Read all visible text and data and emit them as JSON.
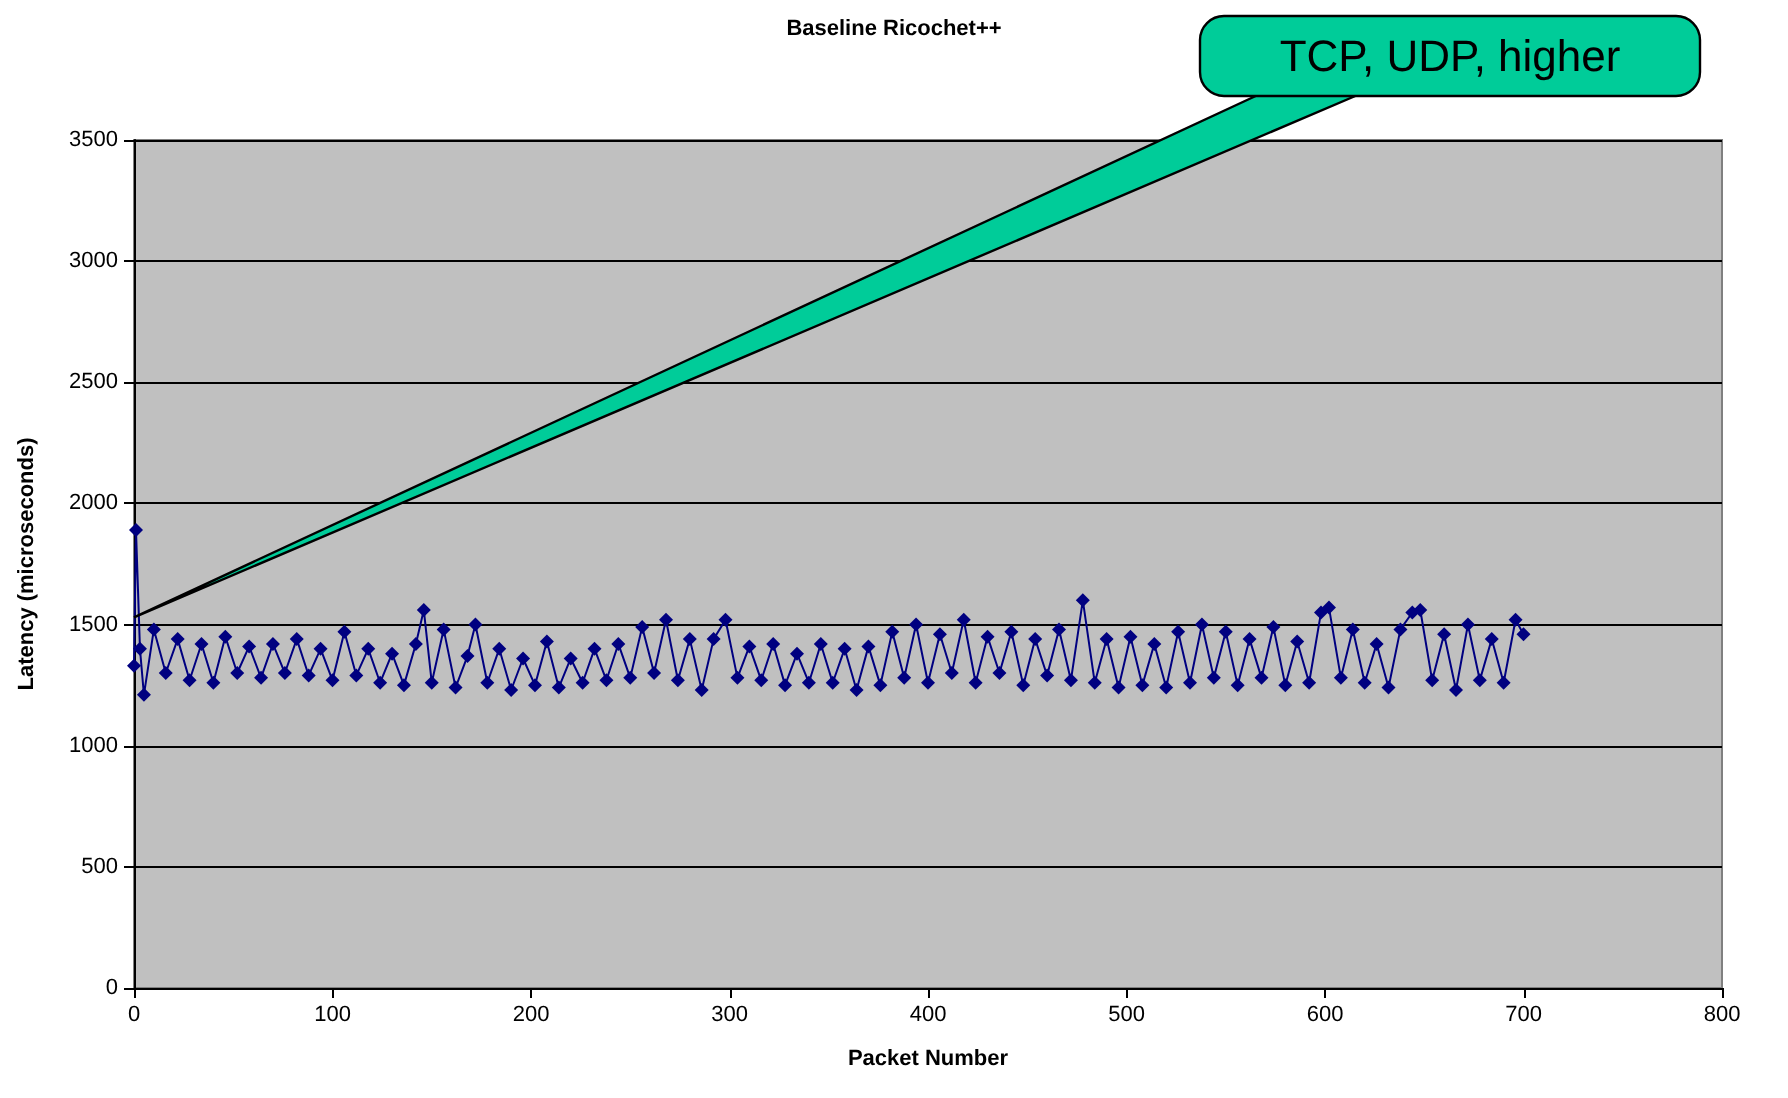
{
  "chart_data": {
    "type": "line",
    "title": "Baseline Ricochet++",
    "xlabel": "Packet Number",
    "ylabel": "Latency (microseconds)",
    "annotations": [
      {
        "text": "TCP, UDP, higher",
        "x": 0,
        "y": 1530
      }
    ],
    "x": [
      0,
      1,
      3,
      5,
      10,
      16,
      22,
      28,
      34,
      40,
      46,
      52,
      58,
      64,
      70,
      76,
      82,
      88,
      94,
      100,
      106,
      112,
      118,
      124,
      130,
      136,
      142,
      146,
      150,
      156,
      162,
      168,
      172,
      178,
      184,
      190,
      196,
      202,
      208,
      214,
      220,
      226,
      232,
      238,
      244,
      250,
      256,
      262,
      268,
      274,
      280,
      286,
      292,
      298,
      304,
      310,
      316,
      322,
      328,
      334,
      340,
      346,
      352,
      358,
      364,
      370,
      376,
      382,
      388,
      394,
      400,
      406,
      412,
      418,
      424,
      430,
      436,
      442,
      448,
      454,
      460,
      466,
      472,
      478,
      484,
      490,
      496,
      502,
      508,
      514,
      520,
      526,
      532,
      538,
      544,
      550,
      556,
      562,
      568,
      574,
      580,
      586,
      592,
      598,
      602,
      608,
      614,
      620,
      626,
      632,
      638,
      644,
      648,
      654,
      660,
      666,
      672,
      678,
      684,
      690,
      696,
      700
    ],
    "series": [
      {
        "color": "#000080",
        "values": [
          1330,
          1890,
          1400,
          1210,
          1480,
          1300,
          1440,
          1270,
          1420,
          1260,
          1450,
          1300,
          1410,
          1280,
          1420,
          1300,
          1440,
          1290,
          1400,
          1270,
          1470,
          1290,
          1400,
          1260,
          1380,
          1250,
          1420,
          1560,
          1260,
          1480,
          1240,
          1370,
          1500,
          1260,
          1400,
          1230,
          1360,
          1250,
          1430,
          1240,
          1360,
          1260,
          1400,
          1270,
          1420,
          1280,
          1490,
          1300,
          1520,
          1270,
          1440,
          1230,
          1440,
          1520,
          1280,
          1410,
          1270,
          1420,
          1250,
          1380,
          1260,
          1420,
          1260,
          1400,
          1230,
          1410,
          1250,
          1470,
          1280,
          1500,
          1260,
          1460,
          1300,
          1520,
          1260,
          1450,
          1300,
          1470,
          1250,
          1440,
          1290,
          1480,
          1270,
          1600,
          1260,
          1440,
          1240,
          1450,
          1250,
          1420,
          1240,
          1470,
          1260,
          1500,
          1280,
          1470,
          1250,
          1440,
          1280,
          1490,
          1250,
          1430,
          1260,
          1550,
          1570,
          1280,
          1480,
          1260,
          1420,
          1240,
          1480,
          1550,
          1560,
          1270,
          1460,
          1230,
          1500,
          1270,
          1440,
          1260,
          1520,
          1460
        ]
      }
    ],
    "xlim": [
      0,
      800
    ],
    "xticks": [
      0,
      100,
      200,
      300,
      400,
      500,
      600,
      700,
      800
    ],
    "ylim": [
      0,
      3500
    ],
    "yticks": [
      0,
      500,
      1000,
      1500,
      2000,
      2500,
      3000,
      3500
    ],
    "grid": "y",
    "marker": "diamond",
    "line_style": "solid"
  }
}
